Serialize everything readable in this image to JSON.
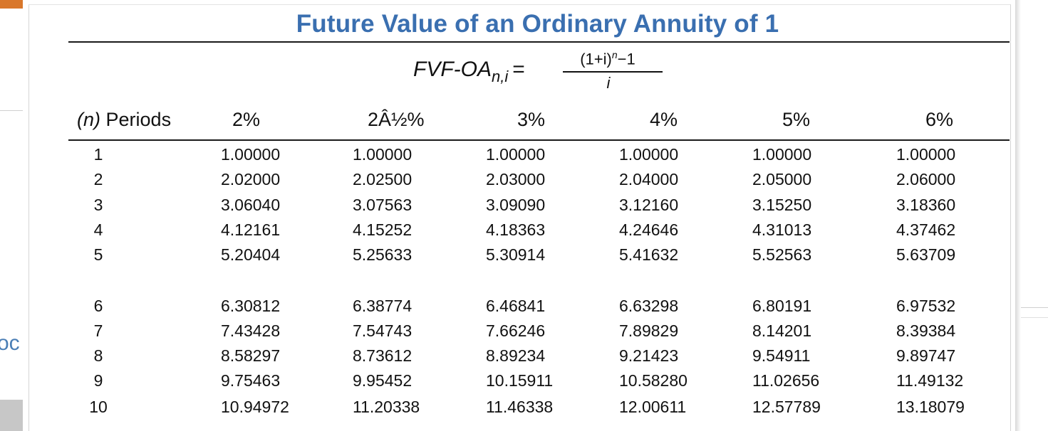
{
  "table": {
    "title": "Future Value of an Ordinary Annuity of 1",
    "formula": {
      "lhs": "FVF-OA",
      "lhs_sub": "n,i",
      "equals": "=",
      "numerator_base": "(1+i)",
      "numerator_exp": "n",
      "numerator_tail": "−1",
      "denominator": "i"
    },
    "periods_header_n": "(n)",
    "periods_header_label": "Periods",
    "rate_headers": [
      "2%",
      "2Â½%",
      "3%",
      "4%",
      "5%",
      "6%"
    ],
    "rows": [
      {
        "n": "1",
        "values": [
          "1.00000",
          "1.00000",
          "1.00000",
          "1.00000",
          "1.00000",
          "1.00000"
        ]
      },
      {
        "n": "2",
        "values": [
          "2.02000",
          "2.02500",
          "2.03000",
          "2.04000",
          "2.05000",
          "2.06000"
        ]
      },
      {
        "n": "3",
        "values": [
          "3.06040",
          "3.07563",
          "3.09090",
          "3.12160",
          "3.15250",
          "3.18360"
        ]
      },
      {
        "n": "4",
        "values": [
          "4.12161",
          "4.15252",
          "4.18363",
          "4.24646",
          "4.31013",
          "4.37462"
        ]
      },
      {
        "n": "5",
        "values": [
          "5.20404",
          "5.25633",
          "5.30914",
          "5.41632",
          "5.52563",
          "5.63709"
        ]
      },
      {
        "n": "6",
        "values": [
          "6.30812",
          "6.38774",
          "6.46841",
          "6.63298",
          "6.80191",
          "6.97532"
        ]
      },
      {
        "n": "7",
        "values": [
          "7.43428",
          "7.54743",
          "7.66246",
          "7.89829",
          "8.14201",
          "8.39384"
        ]
      },
      {
        "n": "8",
        "values": [
          "8.58297",
          "8.73612",
          "8.89234",
          "9.21423",
          "9.54911",
          "9.89747"
        ]
      },
      {
        "n": "9",
        "values": [
          "9.75463",
          "9.95452",
          "10.15911",
          "10.58280",
          "11.02656",
          "11.49132"
        ]
      },
      {
        "n": "10",
        "values": [
          "10.94972",
          "11.20338",
          "11.46338",
          "12.00611",
          "12.57789",
          "13.18079"
        ]
      }
    ]
  },
  "background": {
    "left_fragment": "oc"
  },
  "colors": {
    "title": "#3a6fb0",
    "accent_orange": "#d9772b"
  }
}
